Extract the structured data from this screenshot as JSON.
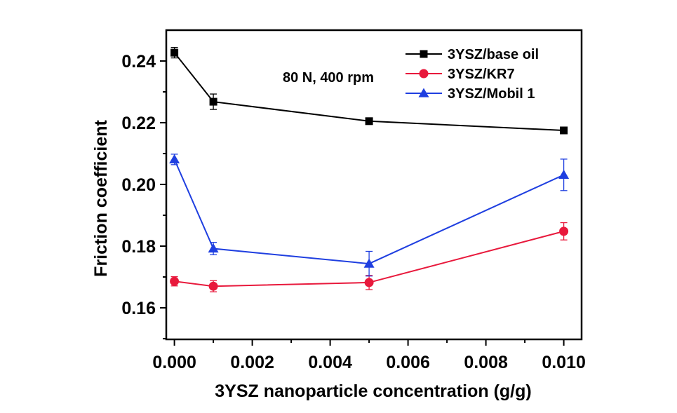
{
  "chart_data": {
    "type": "line",
    "title": "",
    "xlabel": "3YSZ nanoparticle concentration (g/g)",
    "ylabel": "Friction coefficient",
    "xlim": [
      -0.0002,
      0.0105
    ],
    "ylim": [
      0.15,
      0.25
    ],
    "x_ticks": [
      0.0,
      0.002,
      0.004,
      0.006,
      0.008,
      0.01
    ],
    "x_tick_labels": [
      "0.000",
      "0.002",
      "0.004",
      "0.006",
      "0.008",
      "0.010"
    ],
    "x_minor_ticks": [
      0.001,
      0.003,
      0.005,
      0.007,
      0.009
    ],
    "y_ticks": [
      0.16,
      0.18,
      0.2,
      0.22,
      0.24
    ],
    "y_tick_labels": [
      "0.16",
      "0.18",
      "0.20",
      "0.22",
      "0.24"
    ],
    "y_minor_ticks": [
      0.15,
      0.17,
      0.19,
      0.21,
      0.23,
      0.25
    ],
    "grid": false,
    "legend_position": "top-right",
    "annotation": "80 N, 400 rpm",
    "x": [
      0.0,
      0.001,
      0.005,
      0.01
    ],
    "series": [
      {
        "name": "3YSZ/base oil",
        "color": "#000000",
        "marker": "square",
        "values": [
          0.2427,
          0.2268,
          0.2205,
          0.2175
        ],
        "errors": [
          0.0017,
          0.0025,
          0.0005,
          0.0005
        ]
      },
      {
        "name": "3YSZ/KR7",
        "color": "#e8193c",
        "marker": "circle",
        "values": [
          0.1686,
          0.167,
          0.1682,
          0.1848
        ],
        "errors": [
          0.0015,
          0.0018,
          0.0023,
          0.0028
        ]
      },
      {
        "name": "3YSZ/Mobil 1",
        "color": "#1f3fe0",
        "marker": "triangle",
        "values": [
          0.2081,
          0.1792,
          0.1743,
          0.2031
        ],
        "errors": [
          0.0017,
          0.002,
          0.004,
          0.0051
        ]
      }
    ]
  }
}
